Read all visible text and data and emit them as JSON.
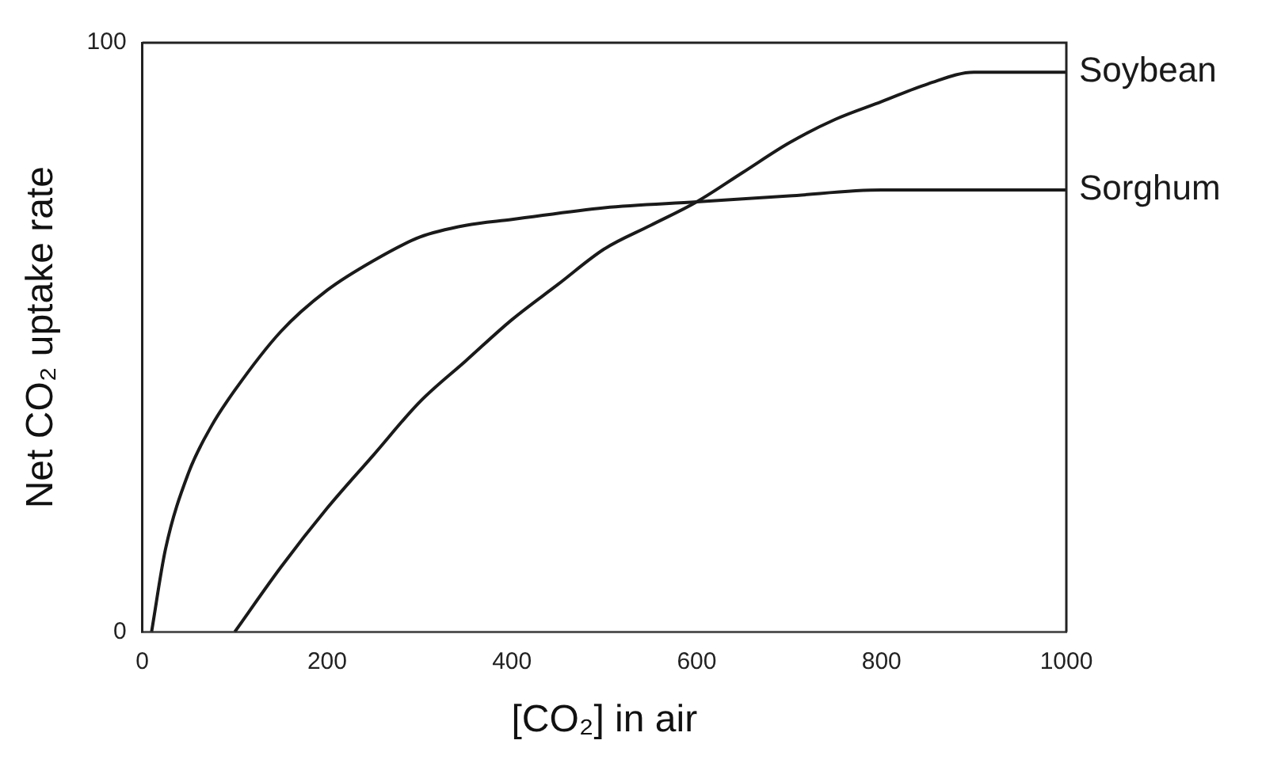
{
  "chart_data": {
    "type": "line",
    "xlabel": "[CO₂] in air",
    "ylabel": "Net CO₂ uptake rate",
    "xlim": [
      0,
      1000
    ],
    "ylim": [
      0,
      100
    ],
    "xticks": [
      0,
      200,
      400,
      600,
      800,
      1000
    ],
    "yticks": [
      0,
      100
    ],
    "grid": false,
    "legend": false,
    "marker": "none",
    "line_style": "solid",
    "series": [
      {
        "name": "Soybean",
        "color": "#1a1a1a",
        "x": [
          100,
          150,
          200,
          250,
          300,
          350,
          400,
          450,
          500,
          550,
          600,
          650,
          700,
          750,
          800,
          850,
          900,
          950,
          1000
        ],
        "values": [
          0,
          11,
          21,
          30,
          39,
          46,
          53,
          59,
          65,
          69,
          73,
          78,
          83,
          87,
          90,
          93,
          95,
          95,
          95
        ]
      },
      {
        "name": "Sorghum",
        "color": "#1a1a1a",
        "x": [
          10,
          25,
          50,
          75,
          100,
          150,
          200,
          250,
          300,
          350,
          400,
          500,
          600,
          700,
          800,
          900,
          1000
        ],
        "values": [
          0,
          14,
          27,
          35,
          41,
          51,
          58,
          63,
          67,
          69,
          70,
          72,
          73,
          74,
          75,
          75,
          75
        ]
      }
    ]
  }
}
